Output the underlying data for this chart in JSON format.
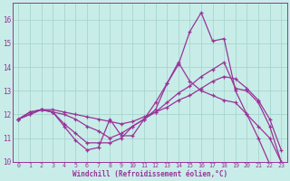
{
  "xlabel": "Windchill (Refroidissement éolien,°C)",
  "bg_color": "#c8ede8",
  "grid_color": "#a8d4ce",
  "line_color": "#993399",
  "xlim": [
    -0.5,
    23.5
  ],
  "ylim": [
    10.0,
    16.7
  ],
  "xticks": [
    0,
    1,
    2,
    3,
    4,
    5,
    6,
    7,
    8,
    9,
    10,
    11,
    12,
    13,
    14,
    15,
    16,
    17,
    18,
    19,
    20,
    21,
    22,
    23
  ],
  "yticks": [
    10,
    11,
    12,
    13,
    14,
    15,
    16
  ],
  "series": [
    [
      11.8,
      12.0,
      12.2,
      12.1,
      11.5,
      10.9,
      10.5,
      10.6,
      11.8,
      11.1,
      11.1,
      11.8,
      12.5,
      13.3,
      14.1,
      15.5,
      16.3,
      15.1,
      15.2,
      13.0,
      12.0,
      11.0,
      9.9,
      9.9
    ],
    [
      11.8,
      12.0,
      12.2,
      12.1,
      11.6,
      11.2,
      10.8,
      10.8,
      10.8,
      11.0,
      11.5,
      11.8,
      12.2,
      13.3,
      14.2,
      13.4,
      13.0,
      12.8,
      12.6,
      12.5,
      12.0,
      11.5,
      11.0,
      10.0
    ],
    [
      11.8,
      12.1,
      12.2,
      12.1,
      12.0,
      11.8,
      11.5,
      11.3,
      11.0,
      11.2,
      11.5,
      11.8,
      12.1,
      12.5,
      12.9,
      13.2,
      13.6,
      13.9,
      14.2,
      13.1,
      13.0,
      12.5,
      11.5,
      10.0
    ],
    [
      11.8,
      12.1,
      12.2,
      12.2,
      12.1,
      12.0,
      11.9,
      11.8,
      11.7,
      11.6,
      11.7,
      11.9,
      12.1,
      12.3,
      12.6,
      12.8,
      13.1,
      13.4,
      13.6,
      13.5,
      13.1,
      12.6,
      11.8,
      10.5
    ]
  ]
}
